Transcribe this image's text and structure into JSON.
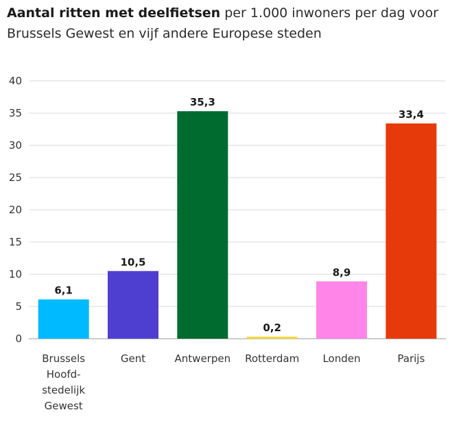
{
  "chart_data": {
    "type": "bar",
    "title_bold": "Aantal ritten met deelfietsen",
    "title_rest": "per 1.000 inwoners per dag voor Brussels Gewest en vijf andere Europese steden",
    "categories": [
      [
        "Brussels",
        "Hoofd-",
        "stedelijk",
        "Gewest"
      ],
      [
        "Gent"
      ],
      [
        "Antwerpen"
      ],
      [
        "Rotterdam"
      ],
      [
        "Londen"
      ],
      [
        "Parijs"
      ]
    ],
    "values": [
      6.1,
      10.5,
      35.3,
      0.2,
      8.9,
      33.4
    ],
    "value_labels": [
      "6,1",
      "10,5",
      "35,3",
      "0,2",
      "8,9",
      "33,4"
    ],
    "colors": [
      "#00baff",
      "#4f3fd1",
      "#006b2f",
      "#f4d83a",
      "#ff85e8",
      "#e63a0a"
    ],
    "yticks": [
      0,
      5,
      10,
      15,
      20,
      25,
      30,
      35,
      40
    ],
    "ylim": [
      0,
      40
    ],
    "xlabel": "",
    "ylabel": "",
    "grid": true
  }
}
